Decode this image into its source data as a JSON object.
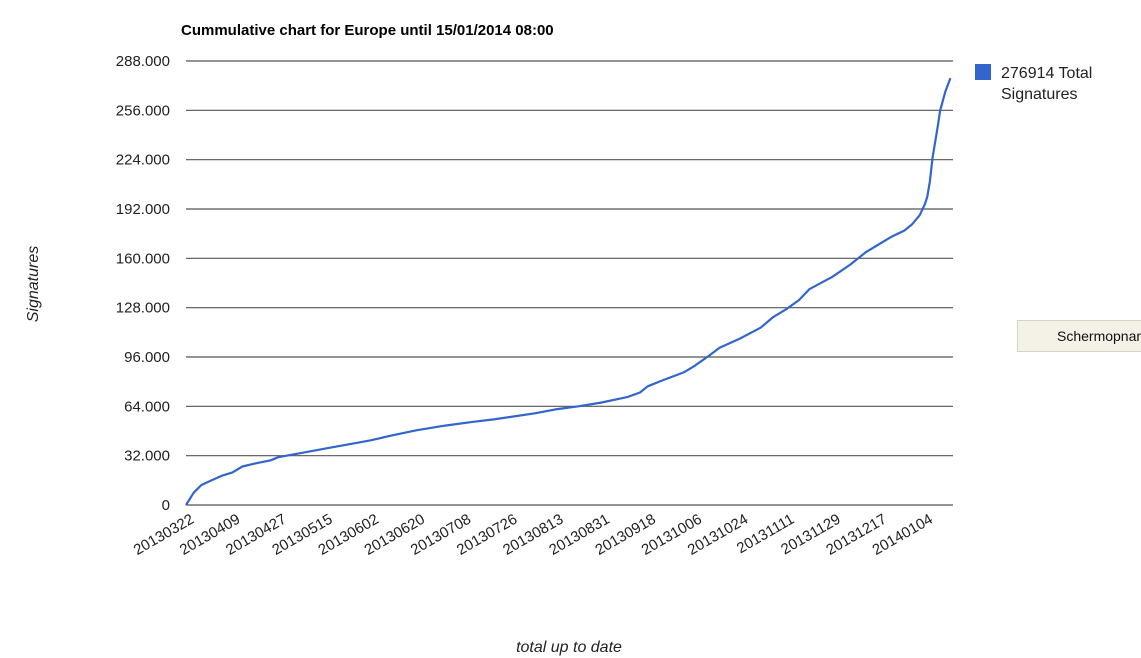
{
  "chart_data": {
    "type": "line",
    "title": "Cummulative chart for Europe until 15/01/2014 08:00",
    "xlabel": "total up to date",
    "ylabel": "Signatures",
    "ylim": [
      0,
      288000
    ],
    "yticks": [
      0,
      32000,
      64000,
      96000,
      128000,
      160000,
      192000,
      224000,
      256000,
      288000
    ],
    "ytick_labels": [
      "0",
      "32.000",
      "64.000",
      "96.000",
      "128.000",
      "160.000",
      "192.000",
      "224.000",
      "256.000",
      "288.000"
    ],
    "xtick_labels": [
      "20130322",
      "20130409",
      "20130427",
      "20130515",
      "20130602",
      "20130620",
      "20130708",
      "20130726",
      "20130813",
      "20130831",
      "20130918",
      "20131006",
      "20131024",
      "20131111",
      "20131129",
      "20131217",
      "20140104"
    ],
    "xlim": [
      "20130322",
      "20140115"
    ],
    "grid": true,
    "legend": "right",
    "series": [
      {
        "name": "276914 Total Signatures",
        "color": "#3366cc",
        "points": [
          [
            "20130322",
            0
          ],
          [
            "20130325",
            8000
          ],
          [
            "20130328",
            13000
          ],
          [
            "20130401",
            16000
          ],
          [
            "20130405",
            19000
          ],
          [
            "20130409",
            21000
          ],
          [
            "20130413",
            25000
          ],
          [
            "20130418",
            27000
          ],
          [
            "20130424",
            29000
          ],
          [
            "20130427",
            31000
          ],
          [
            "20130505",
            33500
          ],
          [
            "20130515",
            36500
          ],
          [
            "20130525",
            39500
          ],
          [
            "20130602",
            42000
          ],
          [
            "20130610",
            45000
          ],
          [
            "20130620",
            48500
          ],
          [
            "20130701",
            51500
          ],
          [
            "20130712",
            54000
          ],
          [
            "20130720",
            55500
          ],
          [
            "20130726",
            57000
          ],
          [
            "20130805",
            59500
          ],
          [
            "20130813",
            62000
          ],
          [
            "20130822",
            64000
          ],
          [
            "20130831",
            66500
          ],
          [
            "20130910",
            70000
          ],
          [
            "20130915",
            73000
          ],
          [
            "20130918",
            77000
          ],
          [
            "20130924",
            81000
          ],
          [
            "20131002",
            86000
          ],
          [
            "20131006",
            90000
          ],
          [
            "20131012",
            97000
          ],
          [
            "20131016",
            102000
          ],
          [
            "20131024",
            108000
          ],
          [
            "20131101",
            115000
          ],
          [
            "20131106",
            122000
          ],
          [
            "20131111",
            127000
          ],
          [
            "20131116",
            133000
          ],
          [
            "20131120",
            140000
          ],
          [
            "20131129",
            148000
          ],
          [
            "20131206",
            156000
          ],
          [
            "20131212",
            164000
          ],
          [
            "20131217",
            169000
          ],
          [
            "20131222",
            174000
          ],
          [
            "20131227",
            178000
          ],
          [
            "20131230",
            182000
          ],
          [
            "20140102",
            188000
          ],
          [
            "20140104",
            195000
          ],
          [
            "20140105",
            200000
          ],
          [
            "20140106",
            210000
          ],
          [
            "20140107",
            225000
          ],
          [
            "20140109",
            245000
          ],
          [
            "20140110",
            256000
          ],
          [
            "20140112",
            268000
          ],
          [
            "20140114",
            276914
          ]
        ]
      }
    ]
  },
  "ui": {
    "screenshot_button_label": "Schermopname"
  }
}
